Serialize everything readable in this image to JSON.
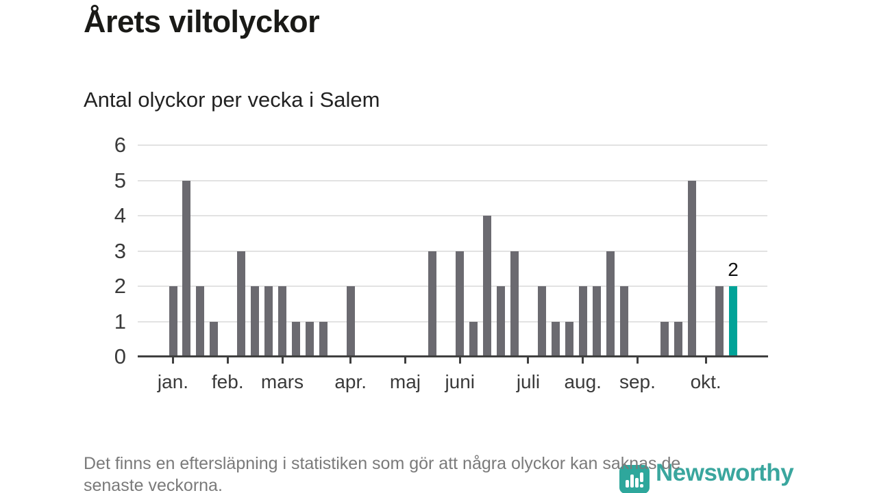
{
  "header": {
    "title": "Årets viltolyckor",
    "subtitle": "Antal olyckor per vecka i Salem"
  },
  "chart_data": {
    "type": "bar",
    "title": "Årets viltolyckor",
    "subtitle": "Antal olyckor per vecka i Salem",
    "x_unit": "vecka",
    "values": [
      2,
      5,
      2,
      1,
      0,
      3,
      2,
      2,
      2,
      1,
      1,
      1,
      0,
      2,
      0,
      0,
      0,
      0,
      0,
      3,
      0,
      3,
      1,
      4,
      2,
      3,
      0,
      2,
      1,
      1,
      2,
      2,
      3,
      2,
      0,
      0,
      1,
      1,
      5,
      0,
      2,
      2
    ],
    "highlight_index": 41,
    "highlight_label": "2",
    "y_ticks": [
      0,
      1,
      2,
      3,
      4,
      5,
      6
    ],
    "ylim": [
      0,
      6
    ],
    "grid": true,
    "legend": "none",
    "month_ticks": [
      {
        "label": "jan.",
        "week": 1
      },
      {
        "label": "feb.",
        "week": 5
      },
      {
        "label": "mars",
        "week": 9
      },
      {
        "label": "apr.",
        "week": 14
      },
      {
        "label": "maj",
        "week": 18
      },
      {
        "label": "juni",
        "week": 22
      },
      {
        "label": "juli",
        "week": 27
      },
      {
        "label": "aug.",
        "week": 31
      },
      {
        "label": "sep.",
        "week": 35
      },
      {
        "label": "okt.",
        "week": 40
      }
    ],
    "bar_color": "#6b6a70",
    "highlight_color": "#00a398",
    "gridline_color": "#e2e2e2",
    "axis_color": "#3f3f3f"
  },
  "footer": {
    "note_lines": [
      "Det finns en eftersläpning i statistiken som gör att några olyckor kan saknas de",
      "senaste veckorna."
    ],
    "logo_text": "Newsworthy",
    "logo_color": "#3aa69e"
  }
}
